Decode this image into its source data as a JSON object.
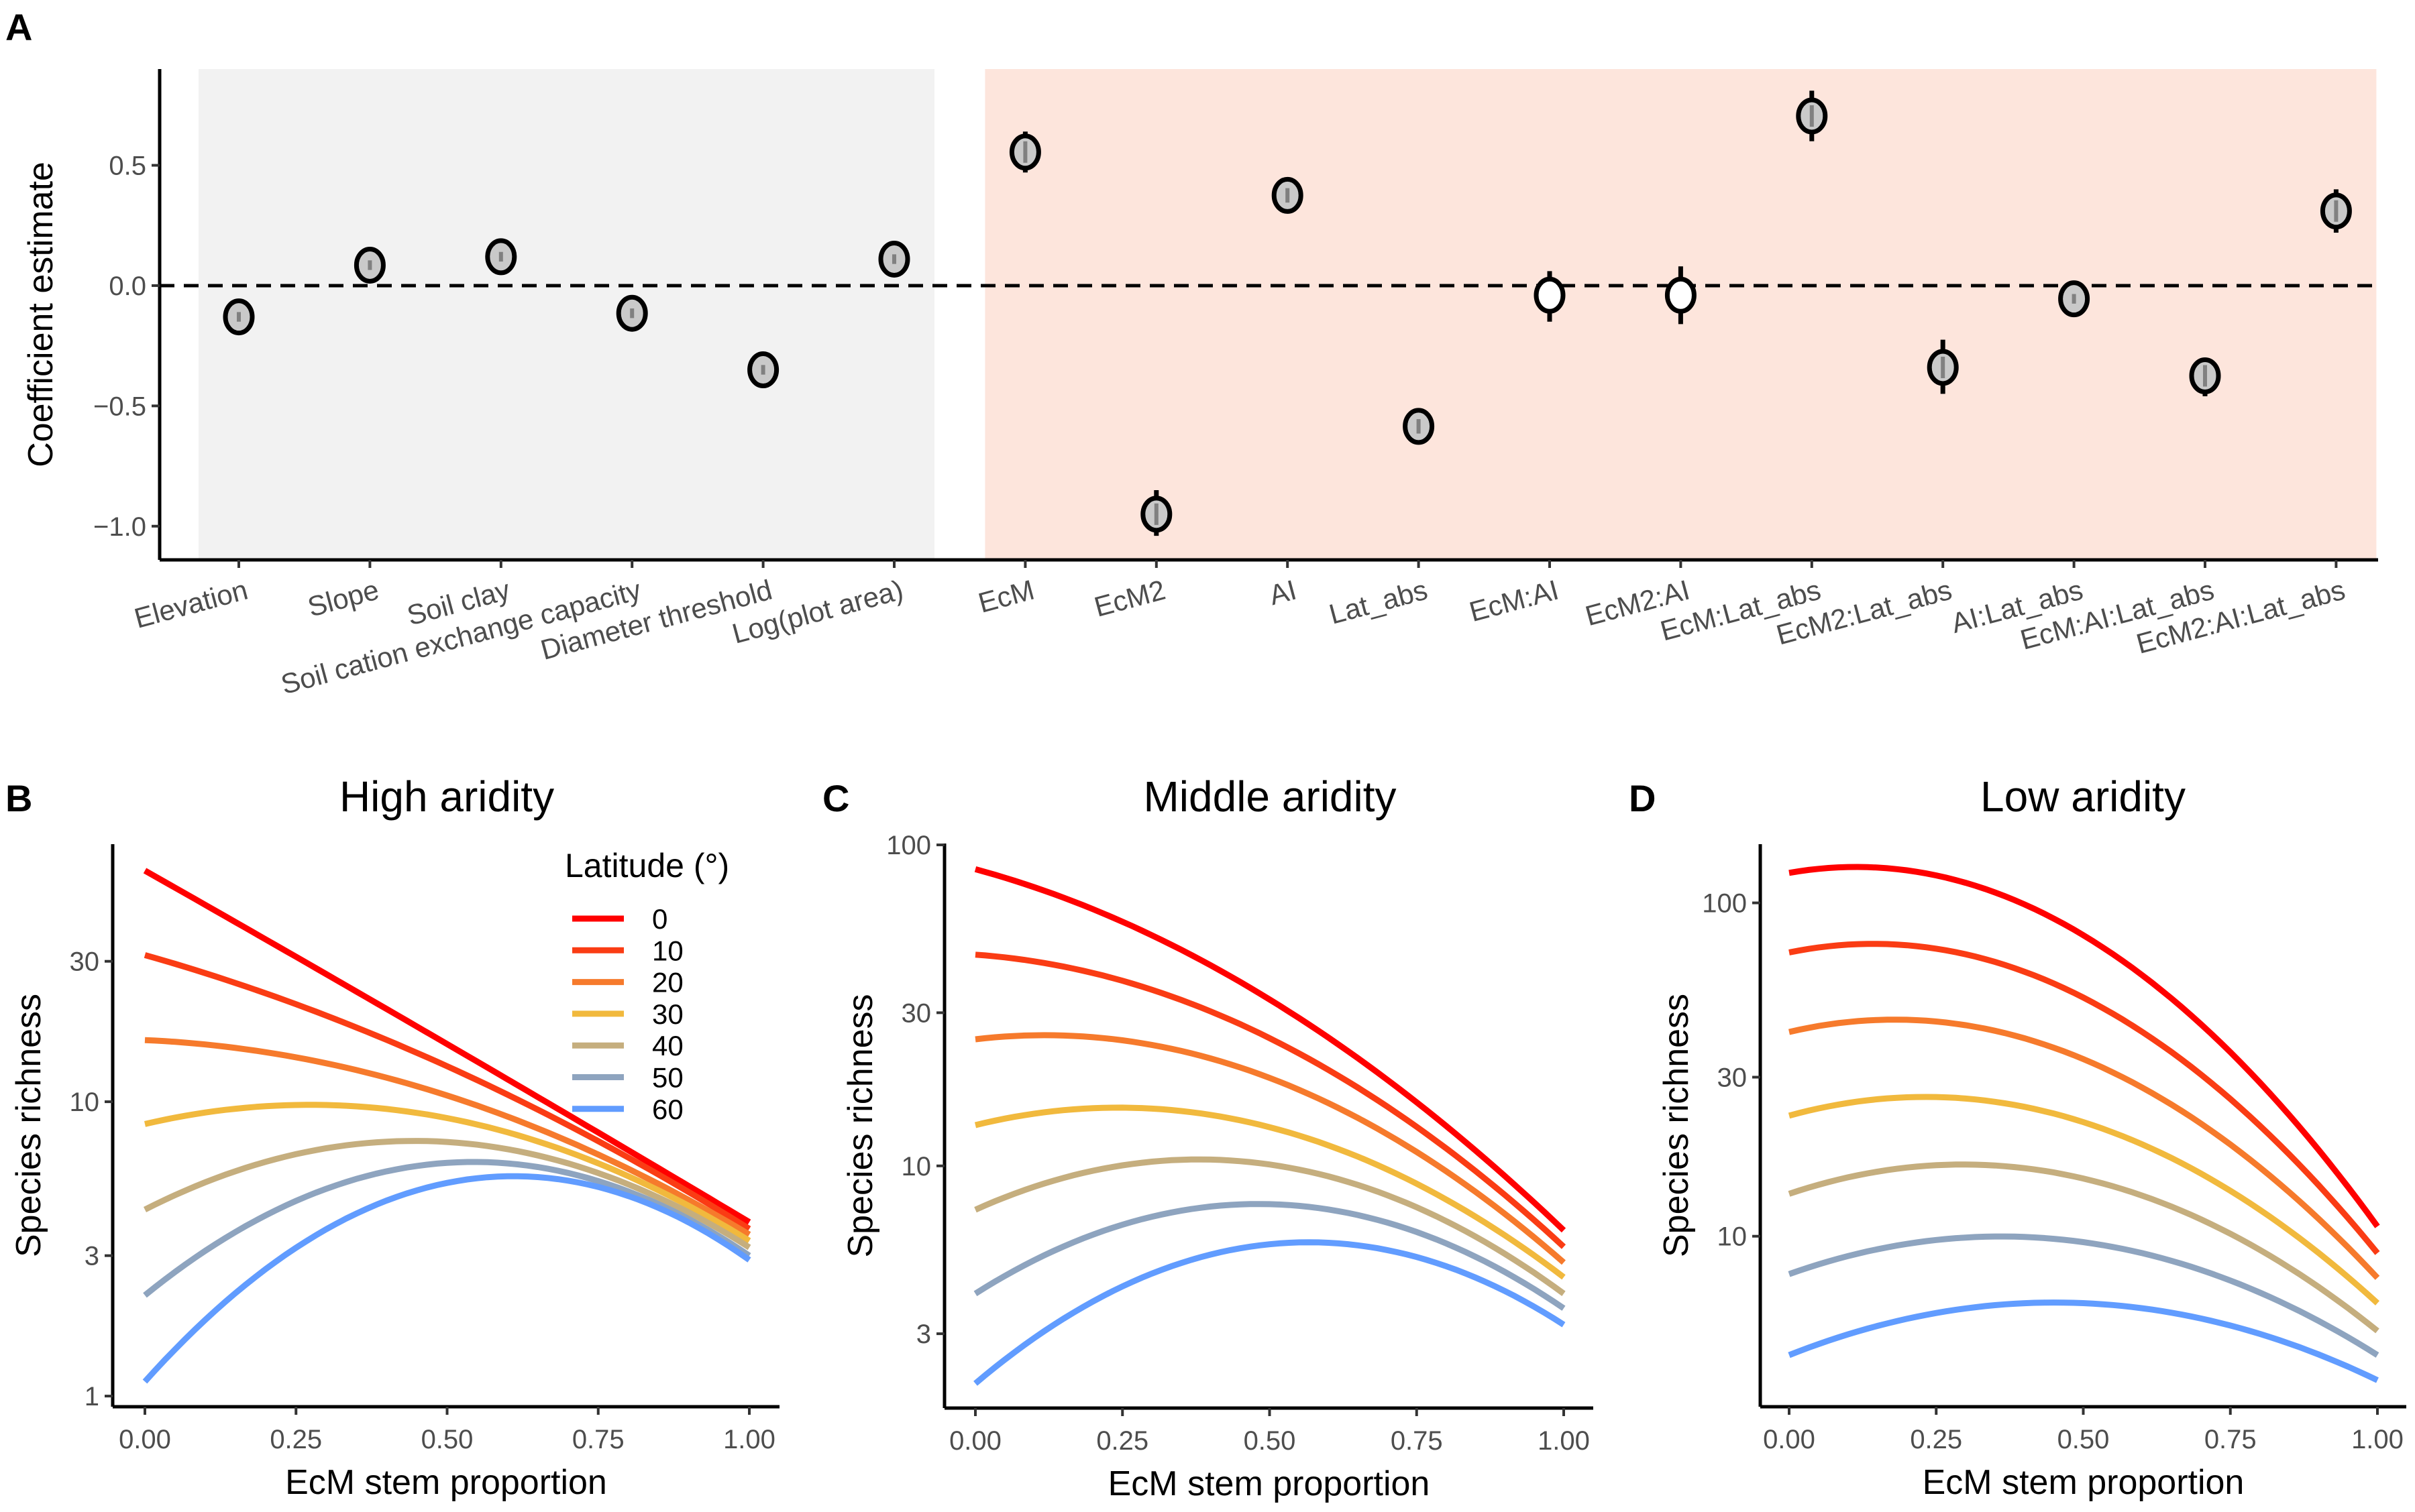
{
  "chart_data": [
    {
      "panel": "A",
      "type": "scatter",
      "ylabel": "Coefficient estimate",
      "ylim": [
        -1.14,
        0.9
      ],
      "yticks": [
        0.5,
        0.0,
        -0.5,
        -1.0
      ],
      "ytick_labels": [
        "0.5",
        "0.0",
        "−0.5",
        "−1.0"
      ],
      "reference_line": 0,
      "group_backgrounds": [
        {
          "from": "Elevation",
          "to": "Log(plot area)",
          "color": "#F2F2F2"
        },
        {
          "from": "EcM",
          "to": "EcM2:AI:Lat_abs",
          "color": "#FDE5DC"
        }
      ],
      "points": [
        {
          "term": "Elevation",
          "estimate": -0.13,
          "lo": -0.15,
          "hi": -0.11,
          "significant": true
        },
        {
          "term": "Slope",
          "estimate": 0.085,
          "lo": 0.065,
          "hi": 0.105,
          "significant": true
        },
        {
          "term": "Soil clay",
          "estimate": 0.12,
          "lo": 0.1,
          "hi": 0.14,
          "significant": true
        },
        {
          "term": "Soil cation exchange capacity",
          "estimate": -0.115,
          "lo": -0.135,
          "hi": -0.095,
          "significant": true
        },
        {
          "term": "Diameter threshold",
          "estimate": -0.35,
          "lo": -0.37,
          "hi": -0.33,
          "significant": true
        },
        {
          "term": "Log(plot area)",
          "estimate": 0.11,
          "lo": 0.09,
          "hi": 0.13,
          "significant": true
        },
        {
          "term": "EcM",
          "estimate": 0.555,
          "lo": 0.47,
          "hi": 0.64,
          "significant": true
        },
        {
          "term": "EcM2",
          "estimate": -0.95,
          "lo": -1.04,
          "hi": -0.85,
          "significant": true
        },
        {
          "term": "AI",
          "estimate": 0.375,
          "lo": 0.345,
          "hi": 0.405,
          "significant": true
        },
        {
          "term": "Lat_abs",
          "estimate": -0.585,
          "lo": -0.615,
          "hi": -0.555,
          "significant": true
        },
        {
          "term": "EcM:AI",
          "estimate": -0.04,
          "lo": -0.15,
          "hi": 0.06,
          "significant": false
        },
        {
          "term": "EcM2:AI",
          "estimate": -0.04,
          "lo": -0.16,
          "hi": 0.08,
          "significant": false
        },
        {
          "term": "EcM:Lat_abs",
          "estimate": 0.705,
          "lo": 0.6,
          "hi": 0.81,
          "significant": true
        },
        {
          "term": "EcM2:Lat_abs",
          "estimate": -0.34,
          "lo": -0.45,
          "hi": -0.225,
          "significant": true
        },
        {
          "term": "AI:Lat_abs",
          "estimate": -0.055,
          "lo": -0.075,
          "hi": -0.035,
          "significant": true
        },
        {
          "term": "EcM:AI:Lat_abs",
          "estimate": -0.375,
          "lo": -0.46,
          "hi": -0.3,
          "significant": true
        },
        {
          "term": "EcM2:AI:Lat_abs",
          "estimate": 0.31,
          "lo": 0.22,
          "hi": 0.4,
          "significant": true
        }
      ]
    },
    {
      "panel": "B",
      "type": "line",
      "title": "High aridity",
      "xlabel": "EcM stem proportion",
      "ylabel": "Species richness",
      "y_scale": "log",
      "xlim": [
        0,
        1
      ],
      "ylim": [
        0.92,
        75
      ],
      "xticks": [
        "0.00",
        "0.25",
        "0.50",
        "0.75",
        "1.00"
      ],
      "yticks": [
        1,
        3,
        10,
        30
      ],
      "legend": {
        "title": "Latitude (°)",
        "placement": "top-right"
      },
      "x": [
        0,
        0.5,
        1
      ],
      "series": [
        {
          "name": "0",
          "color": "#FF0000",
          "values": [
            61,
            15.7,
            3.9
          ]
        },
        {
          "name": "10",
          "color": "#FA3C14",
          "values": [
            31.5,
            13.2,
            3.7
          ]
        },
        {
          "name": "20",
          "color": "#F67A2C",
          "values": [
            16.2,
            10.5,
            3.54
          ]
        },
        {
          "name": "30",
          "color": "#F1B93D",
          "values": [
            8.4,
            8.8,
            3.37
          ]
        },
        {
          "name": "40",
          "color": "#C5AE7E",
          "values": [
            4.3,
            7.3,
            3.2
          ]
        },
        {
          "name": "50",
          "color": "#8EA4BF",
          "values": [
            2.2,
            6.2,
            3.0
          ]
        },
        {
          "name": "60",
          "color": "#619CFF",
          "values": [
            1.12,
            5.3,
            2.9
          ]
        }
      ]
    },
    {
      "panel": "C",
      "type": "line",
      "title": "Middle aridity",
      "xlabel": "EcM stem proportion",
      "ylabel": "Species richness",
      "y_scale": "log",
      "xlim": [
        0,
        1
      ],
      "ylim": [
        1.76,
        101
      ],
      "xticks": [
        "0.00",
        "0.25",
        "0.50",
        "0.75",
        "1.00"
      ],
      "yticks": [
        3,
        10,
        30,
        100
      ],
      "x": [
        0,
        0.5,
        1
      ],
      "series": [
        {
          "name": "0",
          "color": "#FF0000",
          "values": [
            84,
            33,
            6.3
          ]
        },
        {
          "name": "10",
          "color": "#FA3C14",
          "values": [
            45.5,
            25,
            5.6
          ]
        },
        {
          "name": "20",
          "color": "#F67A2C",
          "values": [
            24.8,
            18.8,
            5.0
          ]
        },
        {
          "name": "30",
          "color": "#F1B93D",
          "values": [
            13.4,
            13.2,
            4.5
          ]
        },
        {
          "name": "40",
          "color": "#C5AE7E",
          "values": [
            7.3,
            10.1,
            4.0
          ]
        },
        {
          "name": "50",
          "color": "#8EA4BF",
          "values": [
            4.0,
            7.6,
            3.6
          ]
        },
        {
          "name": "60",
          "color": "#619CFF",
          "values": [
            2.1,
            5.7,
            3.2
          ]
        }
      ]
    },
    {
      "panel": "D",
      "type": "line",
      "title": "Low aridity",
      "xlabel": "EcM stem proportion",
      "ylabel": "Species richness",
      "y_scale": "log",
      "xlim": [
        0,
        1
      ],
      "ylim": [
        3.08,
        150
      ],
      "xticks": [
        "0.00",
        "0.25",
        "0.50",
        "0.75",
        "1.00"
      ],
      "yticks": [
        10,
        30,
        100
      ],
      "x": [
        0,
        0.5,
        1
      ],
      "series": [
        {
          "name": "0",
          "color": "#FF0000",
          "values": [
            123,
            80,
            10.7
          ]
        },
        {
          "name": "10",
          "color": "#FA3C14",
          "values": [
            71,
            52,
            8.9
          ]
        },
        {
          "name": "20",
          "color": "#F67A2C",
          "values": [
            41,
            34,
            7.5
          ]
        },
        {
          "name": "30",
          "color": "#F1B93D",
          "values": [
            23,
            22,
            6.3
          ]
        },
        {
          "name": "40",
          "color": "#C5AE7E",
          "values": [
            13.4,
            14.9,
            5.2
          ]
        },
        {
          "name": "50",
          "color": "#8EA4BF",
          "values": [
            7.7,
            9.6,
            4.4
          ]
        },
        {
          "name": "60",
          "color": "#619CFF",
          "values": [
            4.4,
            6.3,
            3.7
          ]
        }
      ]
    }
  ]
}
